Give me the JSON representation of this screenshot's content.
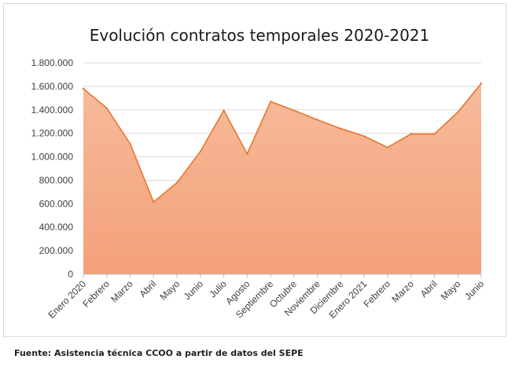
{
  "chart_data": {
    "type": "area",
    "title": "Evolución contratos temporales 2020-2021",
    "xlabel": "",
    "ylabel": "",
    "categories": [
      "Enero 2020",
      "Febrero",
      "Marzo",
      "Abril",
      "Mayo",
      "Junio",
      "Julio",
      "Agosto",
      "Septiembre",
      "Octubre",
      "Noviembre",
      "Diciembre",
      "Enero 2021",
      "Febrero",
      "Marzo",
      "Abril",
      "Mayo",
      "Junio"
    ],
    "series": [
      {
        "values": [
          1580000,
          1415000,
          1110000,
          615000,
          780000,
          1045000,
          1395000,
          1025000,
          1470000,
          1395000,
          1315000,
          1240000,
          1175000,
          1080000,
          1195000,
          1195000,
          1380000,
          1625000
        ]
      }
    ],
    "ylim": [
      0,
      1800000
    ],
    "yticks": [
      "0",
      "200.000",
      "400.000",
      "600.000",
      "800.000",
      "1.000.000",
      "1.200.000",
      "1.400.000",
      "1.600.000",
      "1.800.000"
    ],
    "grid": true,
    "legend": "none",
    "colors": {
      "line": "#e8762c",
      "fill_top": "#f7bb9b",
      "fill_bottom": "#f3a07a",
      "grid": "#d9d9d9",
      "text": "#404040"
    }
  },
  "footer": {
    "source": "Fuente: Asistencia técnica CCOO a partir de datos del SEPE"
  }
}
